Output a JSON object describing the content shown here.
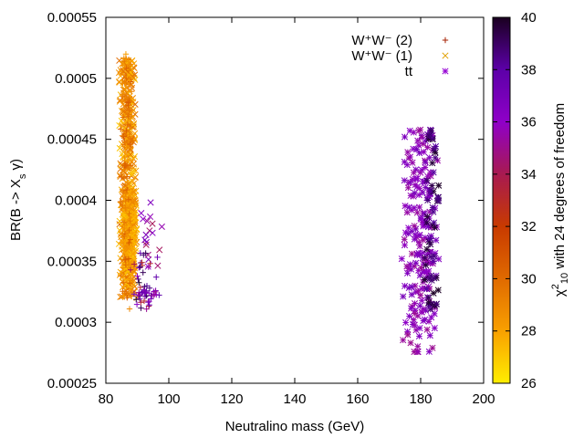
{
  "chart_data": {
    "type": "scatter",
    "title": "",
    "xlabel": "Neutralino mass (GeV)",
    "ylabel": "BR(B -> X_s γ)",
    "xlim": [
      80,
      200
    ],
    "ylim": [
      0.00025,
      0.00055
    ],
    "x_ticks": [
      "80",
      "100",
      "120",
      "140",
      "160",
      "180",
      "200"
    ],
    "y_ticks": [
      "0.00025",
      "0.0003",
      "0.00035",
      "0.0004",
      "0.00045",
      "0.0005",
      "0.00055"
    ],
    "grid": false,
    "legend_position": "top-right",
    "colorbar": {
      "label": "χ²₁₀ with 24 degrees of freedom",
      "range": [
        26,
        40
      ],
      "ticks": [
        "26",
        "28",
        "30",
        "32",
        "34",
        "36",
        "38",
        "40"
      ],
      "palette": [
        "#ffee00",
        "#f9a000",
        "#e06a00",
        "#c83a00",
        "#a81a50",
        "#8f00c8",
        "#5c00a8",
        "#1a0020"
      ]
    },
    "series": [
      {
        "name": "W+W- (2)",
        "legend_label": "W⁺W⁻ (2)",
        "marker": "plus",
        "color": "#a51f00",
        "clusters": [
          {
            "x_range": [
              84.5,
              88.5
            ],
            "y_range": [
              0.00031,
              0.00052
            ],
            "count": 120,
            "c_range": [
              28,
              31
            ]
          },
          {
            "x_range": [
              87,
              97
            ],
            "y_range": [
              0.00031,
              0.00036
            ],
            "count": 40,
            "c_range": [
              33,
              40
            ]
          },
          {
            "x_range": [
              88,
              97
            ],
            "y_range": [
              0.000322,
              0.000326
            ],
            "count": 20,
            "c_range": [
              35,
              38
            ]
          }
        ]
      },
      {
        "name": "W+W- (1)",
        "legend_label": "W⁺W⁻ (1)",
        "marker": "cross",
        "color": "#e0a000",
        "clusters": [
          {
            "x_range": [
              84,
              90
            ],
            "y_range": [
              0.00032,
              0.000515
            ],
            "count": 480,
            "c_range": [
              27,
              30
            ]
          },
          {
            "x_range": [
              85.5,
              90
            ],
            "y_range": [
              0.00034,
              0.00041
            ],
            "count": 260,
            "c_range": [
              27,
              29
            ]
          },
          {
            "x_range": [
              89,
              99.5
            ],
            "y_range": [
              0.00034,
              0.0004
            ],
            "count": 18,
            "c_range": [
              34,
              37
            ]
          }
        ]
      },
      {
        "name": "tt",
        "legend_label": "tt",
        "marker": "star",
        "color": "#9400d3",
        "clusters": [
          {
            "x_range": [
              173.5,
              186
            ],
            "y_range": [
              0.000275,
              0.00046
            ],
            "count": 200,
            "c_range": [
              35,
              37
            ]
          },
          {
            "x_range": [
              181,
              186
            ],
            "y_range": [
              0.00031,
              0.00046
            ],
            "count": 60,
            "c_range": [
              38,
              40
            ]
          }
        ]
      }
    ]
  }
}
